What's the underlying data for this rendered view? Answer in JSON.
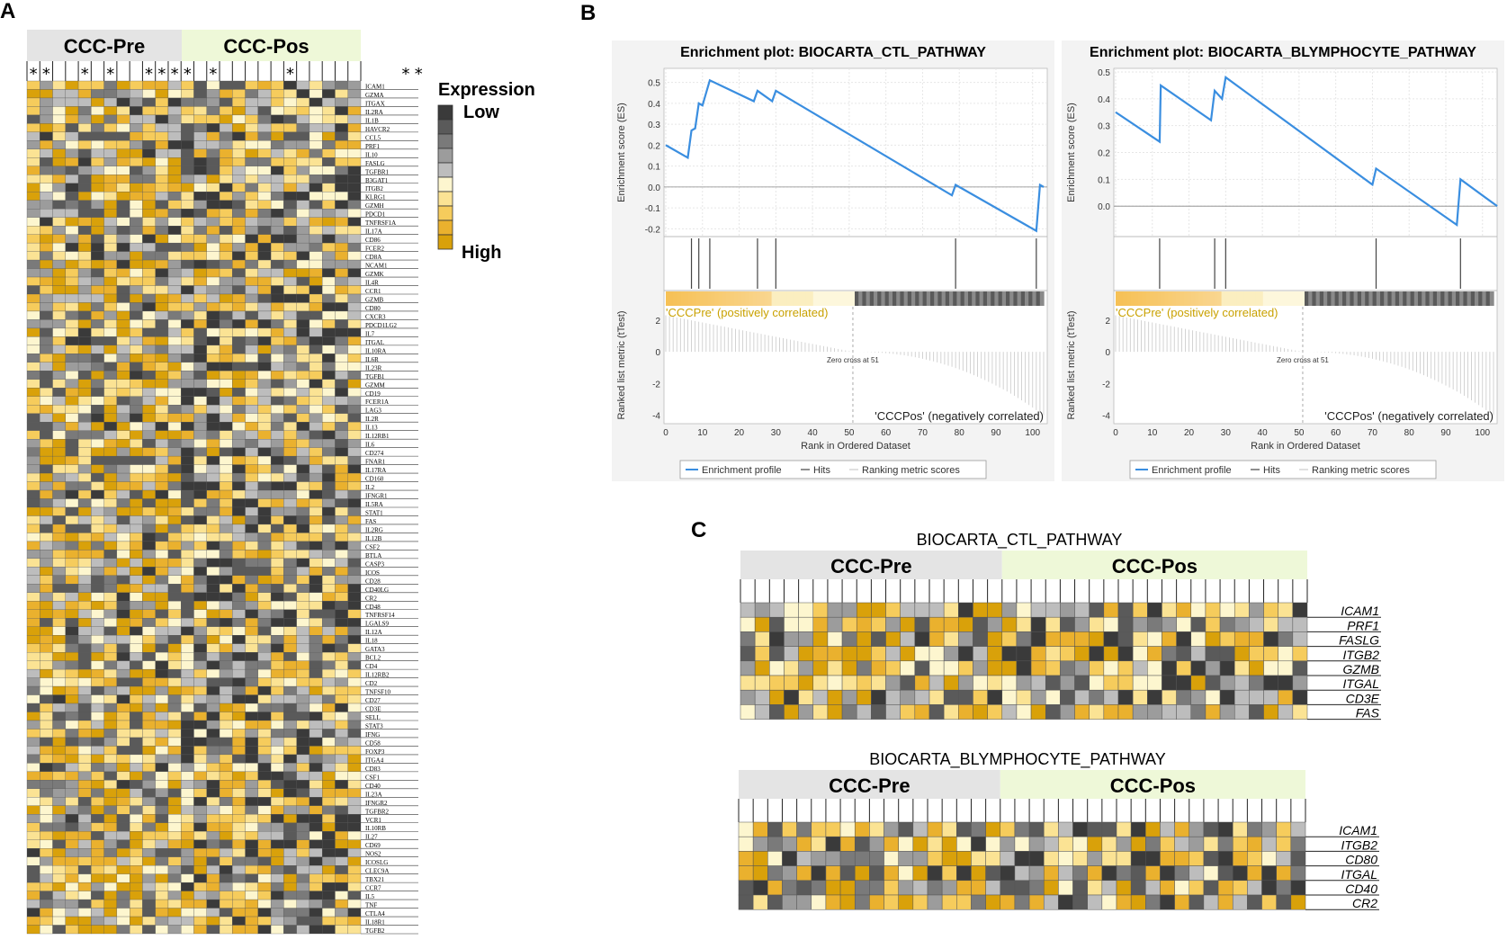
{
  "panel_labels": {
    "a": "A",
    "b": "B",
    "c": "C"
  },
  "colors": {
    "pre_header": "#e4e4e4",
    "pos_header": "#eef8d8",
    "profile_line": "#3a8ee0",
    "scale": [
      "#3a3a3a",
      "#5a5a5a",
      "#7a7a7a",
      "#9c9c9c",
      "#bdbdbd",
      "#fdf6cf",
      "#fbe394",
      "#f6cc5c",
      "#eab12e",
      "#d9a10a"
    ]
  },
  "heatmap_a": {
    "group_pre": "CCC-Pre",
    "group_pos": "CCC-Pos",
    "n_pre": 12,
    "n_pos": 14,
    "star_label": "*",
    "star_columns": [
      0,
      1,
      4,
      6,
      9,
      10,
      11,
      12,
      14,
      20,
      29,
      30
    ],
    "genes": [
      "ICAM1",
      "GZMA",
      "ITGAX",
      "IL2RA",
      "IL1B",
      "HAVCR2",
      "CCL5",
      "PRF1",
      "IL10",
      "FASLG",
      "TGFBR1",
      "B3GAT1",
      "ITGB2",
      "KLRG1",
      "GZMH",
      "PDCD1",
      "TNFRSF1A",
      "IL17A",
      "CD86",
      "FCER2",
      "CD8A",
      "NCAM1",
      "GZMK",
      "IL4R",
      "CCR1",
      "GZMB",
      "CD80",
      "CXCR3",
      "PDCD1LG2",
      "IL7",
      "ITGAL",
      "IL10RA",
      "IL6R",
      "IL23R",
      "TGFB1",
      "GZMM",
      "CD19",
      "FCER1A",
      "LAG3",
      "IL2R",
      "IL13",
      "IL12RB1",
      "IL6",
      "CD274",
      "FNAR1",
      "IL17RA",
      "CD160",
      "IL2",
      "IFNGR1",
      "IL5RA",
      "STAT1",
      "FAS",
      "IL2RG",
      "IL12B",
      "CSF2",
      "BTLA",
      "CASP3",
      "ICOS",
      "CD28",
      "CD40LG",
      "CR2",
      "CD48",
      "TNFRSF14",
      "LGALS9",
      "IL12A",
      "IL18",
      "GATA3",
      "BCL2",
      "CD4",
      "IL12RB2",
      "CD2",
      "TNFSF10",
      "CD27",
      "CD3E",
      "SELL",
      "STAT3",
      "IFNG",
      "CD58",
      "FOXP3",
      "ITGA4",
      "CD83",
      "CSF1",
      "CD40",
      "IL23A",
      "IFNGR2",
      "TGFBR2",
      "VCR1",
      "IL10RB",
      "IL27",
      "CD69",
      "NOS2",
      "ICOSLG",
      "CLEC9A",
      "TBX21",
      "CCR7",
      "IL5",
      "TNF",
      "CTLA4",
      "IL18R1",
      "TGFB2"
    ]
  },
  "legend": {
    "title": "Expression",
    "low": "Low",
    "high": "High"
  },
  "chart_data": [
    {
      "type": "line",
      "title": "Enrichment plot: BIOCARTA_CTL_PATHWAY",
      "ylabel": "Enrichment score (ES)",
      "ylim": [
        -0.22,
        0.55
      ],
      "yticks": [
        0.5,
        0.4,
        0.3,
        0.2,
        0.1,
        0.0,
        -0.1,
        -0.2
      ],
      "xlabel": "Rank in Ordered Dataset",
      "xlim": [
        0,
        103
      ],
      "xticks": [
        0,
        10,
        20,
        30,
        40,
        50,
        60,
        70,
        80,
        90,
        100
      ],
      "profile_x": [
        0,
        6,
        7,
        8,
        9,
        10,
        11,
        12,
        24,
        25,
        29,
        30,
        78,
        79,
        101,
        102,
        103
      ],
      "profile_y": [
        0.2,
        0.14,
        0.27,
        0.28,
        0.4,
        0.39,
        0.45,
        0.51,
        0.41,
        0.46,
        0.41,
        0.46,
        -0.04,
        0.01,
        -0.21,
        0.01,
        0.0
      ],
      "hits": [
        7,
        9,
        12,
        25,
        30,
        79,
        101
      ],
      "ranked_ylabel": "Ranked list metric (tTest)",
      "ranked_ylim": [
        -4.3,
        2.5
      ],
      "ranked_yticks": [
        2,
        0,
        -2,
        -4
      ],
      "zero_cross_rank": 51,
      "zero_cross_label": "Zero cross at 51",
      "pos_label": "'CCCPre' (positively correlated)",
      "neg_label": "'CCCPos' (negatively correlated)",
      "legend": [
        "Enrichment profile",
        "Hits",
        "Ranking metric scores"
      ]
    },
    {
      "type": "line",
      "title": "Enrichment plot: BIOCARTA_BLYMPHOCYTE_PATHWAY",
      "ylabel": "Enrichment score (ES)",
      "ylim": [
        -0.1,
        0.5
      ],
      "yticks": [
        0.5,
        0.4,
        0.3,
        0.2,
        0.1,
        0.0
      ],
      "xlabel": "Rank in Ordered Dataset",
      "xlim": [
        0,
        103
      ],
      "xticks": [
        0,
        10,
        20,
        30,
        40,
        50,
        60,
        70,
        80,
        90,
        100
      ],
      "profile_x": [
        0,
        12,
        12.3,
        26,
        27,
        29,
        30,
        70,
        71,
        93,
        94,
        104
      ],
      "profile_y": [
        0.35,
        0.24,
        0.45,
        0.32,
        0.43,
        0.4,
        0.48,
        0.08,
        0.14,
        -0.07,
        0.1,
        0.0
      ],
      "hits": [
        12,
        27,
        30,
        71,
        94
      ],
      "ranked_ylabel": "Ranked list metric (tTest)",
      "ranked_ylim": [
        -4.3,
        2.5
      ],
      "ranked_yticks": [
        2,
        0,
        -2,
        -4
      ],
      "zero_cross_rank": 51,
      "zero_cross_label": "Zero cross at 51",
      "pos_label": "'CCCPre' (positively correlated)",
      "neg_label": "'CCCPos' (negatively correlated)",
      "legend": [
        "Enrichment profile",
        "Hits",
        "Ranking metric scores"
      ]
    }
  ],
  "heatmaps_c": [
    {
      "title": "BIOCARTA_CTL_PATHWAY",
      "group_pre": "CCC-Pre",
      "group_pos": "CCC-Pos",
      "n_pre": 18,
      "n_pos": 21,
      "genes": [
        "ICAM1",
        "PRF1",
        "FASLG",
        "ITGB2",
        "GZMB",
        "ITGAL",
        "CD3E",
        "FAS"
      ]
    },
    {
      "title": "BIOCARTA_BLYMPHOCYTE_PATHWAY",
      "group_pre": "CCC-Pre",
      "group_pos": "CCC-Pos",
      "n_pre": 18,
      "n_pos": 21,
      "genes": [
        "ICAM1",
        "ITGB2",
        "CD80",
        "ITGAL",
        "CD40",
        "CR2"
      ]
    }
  ]
}
